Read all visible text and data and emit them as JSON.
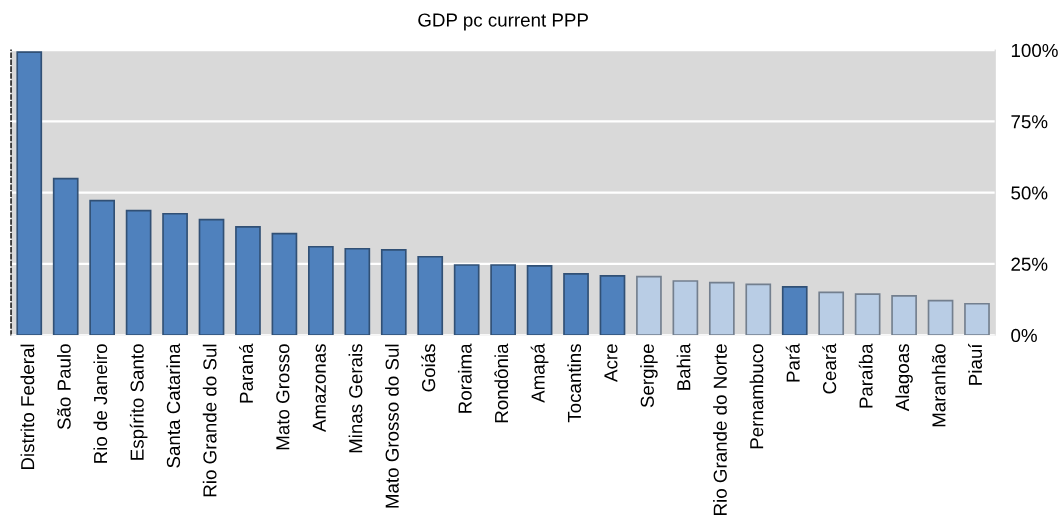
{
  "chart_data": {
    "type": "bar",
    "title": "GDP pc current PPP",
    "categories": [
      "Distrito Federal",
      "São Paulo",
      "Rio de Janeiro",
      "Espírito Santo",
      "Santa Catarina",
      "Rio Grande do Sul",
      "Paraná",
      "Mato Grosso",
      "Amazonas",
      "Minas Gerais",
      "Mato Grosso do Sul",
      "Goiás",
      "Roraima",
      "Rondônia",
      "Amapá",
      "Tocantins",
      "Acre",
      "Sergipe",
      "Bahia",
      "Rio Grande do Norte",
      "Pernambuco",
      "Pará",
      "Ceará",
      "Paraíba",
      "Alagoas",
      "Maranhão",
      "Piauí"
    ],
    "values": [
      99.3,
      54.9,
      47.2,
      43.7,
      42.6,
      40.5,
      38.0,
      35.6,
      31.0,
      30.3,
      29.9,
      27.5,
      24.6,
      24.6,
      24.3,
      21.5,
      20.8,
      20.5,
      19.0,
      18.4,
      17.8,
      16.9,
      15.0,
      14.4,
      13.8,
      12.1,
      11.0
    ],
    "colors": [
      "#4f81bd",
      "#4f81bd",
      "#4f81bd",
      "#4f81bd",
      "#4f81bd",
      "#4f81bd",
      "#4f81bd",
      "#4f81bd",
      "#4f81bd",
      "#4f81bd",
      "#4f81bd",
      "#4f81bd",
      "#4f81bd",
      "#4f81bd",
      "#4f81bd",
      "#4f81bd",
      "#4f81bd",
      "#b9cde5",
      "#b9cde5",
      "#b9cde5",
      "#b9cde5",
      "#4f81bd",
      "#b9cde5",
      "#b9cde5",
      "#b9cde5",
      "#b9cde5",
      "#b9cde5"
    ],
    "ylim": [
      0,
      100
    ],
    "yticks": [
      {
        "value": 0,
        "label": "0%"
      },
      {
        "value": 25,
        "label": "25%"
      },
      {
        "value": 50,
        "label": "50%"
      },
      {
        "value": 75,
        "label": "75%"
      },
      {
        "value": 100,
        "label": "100%"
      }
    ],
    "grid": "y"
  }
}
